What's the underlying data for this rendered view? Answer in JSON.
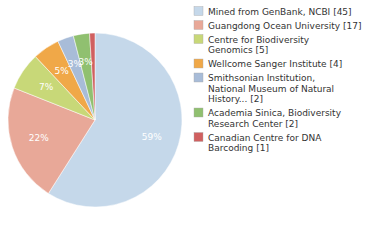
{
  "chart_data": {
    "type": "pie",
    "categories": [
      "Mined from GenBank, NCBI [45]",
      "Guangdong Ocean University [17]",
      "Centre for Biodiversity\nGenomics [5]",
      "Wellcome Sanger Institute [4]",
      "Smithsonian Institution,\nNational Museum of Natural\nHistory... [2]",
      "Academia Sinica, Biodiversity\nResearch Center [2]",
      "Canadian Centre for DNA\nBarcoding [1]"
    ],
    "values": [
      59,
      22,
      7,
      5,
      3,
      3,
      1
    ],
    "value_labels": [
      "59%",
      "22%",
      "7%",
      "5%",
      "3%",
      "3%",
      null
    ],
    "data_labels": true,
    "colors": [
      "#c5d8ea",
      "#e8a898",
      "#c8d878",
      "#f0a848",
      "#a8bcd8",
      "#90c070",
      "#d06060"
    ],
    "legend": "right"
  }
}
